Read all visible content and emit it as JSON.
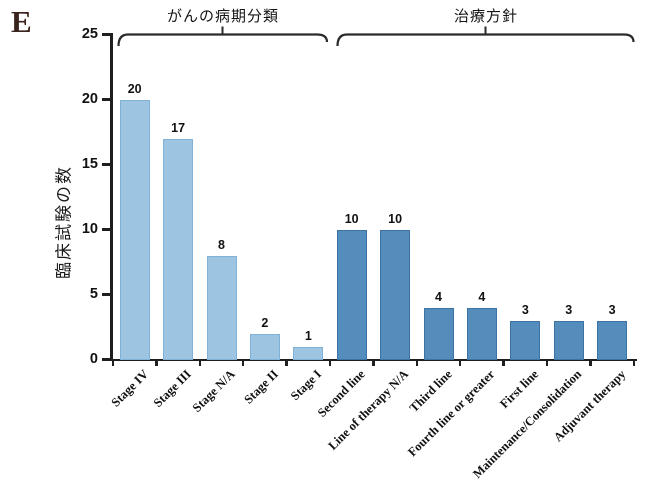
{
  "panel_label": "E",
  "colors": {
    "stage_bar": "#9dc5e1",
    "stage_bar_border": "#7fb2d6",
    "therapy_bar": "#548dbc",
    "therapy_bar_border": "#3d73a2",
    "axis": "#1f1f1f",
    "panel_label": "#3a241d",
    "text": "#111111"
  },
  "y_axis": {
    "label": "臨床試験の数",
    "ticks": [
      "0",
      "5",
      "10",
      "15",
      "20",
      "25"
    ]
  },
  "groups": [
    {
      "label": "がんの病期分類"
    },
    {
      "label": "治療方針"
    }
  ],
  "chart_data": {
    "type": "bar",
    "title": "",
    "xlabel": "",
    "ylabel": "臨床試験の数",
    "ylim": [
      0,
      25
    ],
    "y_tick_step": 5,
    "grid": false,
    "legend": "none",
    "data_labels": true,
    "categories": [
      "Stage IV",
      "Stage III",
      "Stage N/A",
      "Stage II",
      "Stage I",
      "Second line",
      "Line of therapy N/A",
      "Third line",
      "Fourth line or greater",
      "First line",
      "Maintenance/Consolidation",
      "Adjuvant therapy"
    ],
    "values": [
      20,
      17,
      8,
      2,
      1,
      10,
      10,
      4,
      4,
      3,
      3,
      3
    ],
    "series_groups": [
      {
        "label": "がんの病期分類",
        "indices": [
          0,
          1,
          2,
          3,
          4
        ],
        "color": "#9dc5e1",
        "border": "#7fb2d6"
      },
      {
        "label": "治療方針",
        "indices": [
          5,
          6,
          7,
          8,
          9,
          10,
          11
        ],
        "color": "#548dbc",
        "border": "#3d73a2"
      }
    ]
  }
}
